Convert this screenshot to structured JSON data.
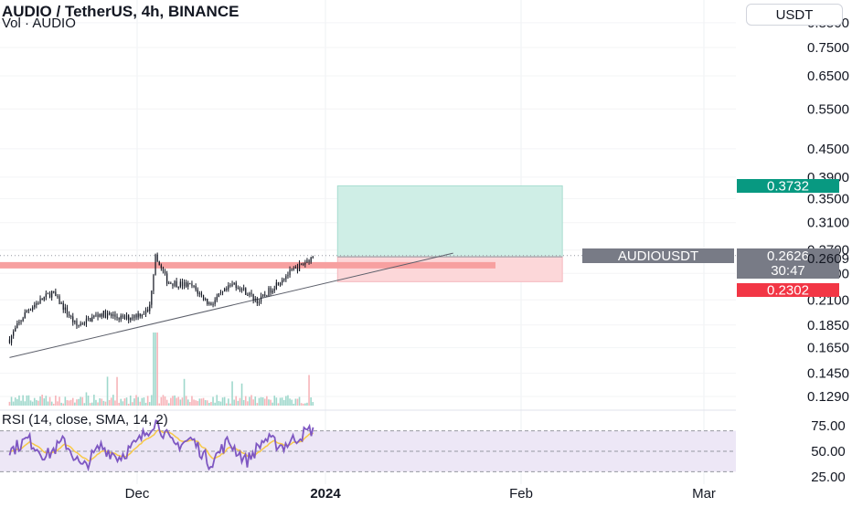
{
  "header": {
    "title": "AUDIO / TetherUS, 4h, BINANCE",
    "subtitle": "Vol · AUDIO",
    "rsi_title": "RSI (14, close, SMA, 14, 2)",
    "currency": "USDT"
  },
  "colors": {
    "up": "#089981",
    "down": "#f23645",
    "profit_zone": "#cfeee6",
    "loss_zone": "#fcd7d9",
    "resistance": "#f7a0a0",
    "rsi_line": "#7e57c2",
    "rsi_ma": "#f7c948",
    "rsi_band": "#ede7f6"
  },
  "chart_data": [
    {
      "type": "candlestick",
      "title": "AUDIO / TetherUS, 4h, BINANCE",
      "y_scale": "log",
      "price_ticks": [
        "0.8500",
        "0.7500",
        "0.6500",
        "0.5500",
        "0.4500",
        "0.3900",
        "0.3500",
        "0.3100",
        "0.2700",
        "0.2400",
        "0.2100",
        "0.1850",
        "0.1650",
        "0.1450",
        "0.1290"
      ],
      "time_labels": [
        "Dec",
        "2024",
        "Feb",
        "Mar"
      ],
      "price_path": [
        {
          "t": "Nov 10",
          "price": 0.172
        },
        {
          "t": "Nov 13",
          "price": 0.2
        },
        {
          "t": "Nov 17",
          "price": 0.218
        },
        {
          "t": "Nov 21",
          "price": 0.184
        },
        {
          "t": "Nov 25",
          "price": 0.196
        },
        {
          "t": "Nov 29",
          "price": 0.191
        },
        {
          "t": "Dec 3",
          "price": 0.199
        },
        {
          "t": "Dec 4",
          "price": 0.26
        },
        {
          "t": "Dec 6",
          "price": 0.23
        },
        {
          "t": "Dec 10",
          "price": 0.225
        },
        {
          "t": "Dec 13",
          "price": 0.205
        },
        {
          "t": "Dec 17",
          "price": 0.228
        },
        {
          "t": "Dec 21",
          "price": 0.208
        },
        {
          "t": "Dec 25",
          "price": 0.235
        },
        {
          "t": "Dec 28",
          "price": 0.25
        },
        {
          "t": "Dec 30",
          "price": 0.262
        }
      ],
      "resistance_level": 0.25,
      "trendline": {
        "from": {
          "t": "Nov 10",
          "price": 0.157
        },
        "to": {
          "t": "Jan 16",
          "price": 0.2609
        }
      },
      "position": {
        "entry": 0.2609,
        "target": 0.3732,
        "stop": 0.2302,
        "from": "Jan 3",
        "to": "Feb 9"
      },
      "price_labels": [
        {
          "text": "0.3732",
          "role": "target"
        },
        {
          "text": "AUDIOUSDT",
          "role": "symbol"
        },
        {
          "text": "0.2626",
          "role": "last"
        },
        {
          "text": "30:47",
          "role": "countdown"
        },
        {
          "text": "0.2609",
          "role": "entry"
        },
        {
          "text": "0.2302",
          "role": "stop"
        }
      ]
    },
    {
      "type": "line",
      "title": "RSI (14, close, SMA, 14, 2)",
      "y_ticks": [
        "75.00",
        "50.00",
        "25.00"
      ],
      "ylim": [
        20,
        80
      ],
      "band": [
        30,
        70
      ],
      "rsi_path": [
        {
          "t": "Nov 10",
          "value": 50
        },
        {
          "t": "Nov 13",
          "value": 62
        },
        {
          "t": "Nov 16",
          "value": 45
        },
        {
          "t": "Nov 19",
          "value": 60
        },
        {
          "t": "Nov 22",
          "value": 33
        },
        {
          "t": "Nov 25",
          "value": 55
        },
        {
          "t": "Nov 28",
          "value": 44
        },
        {
          "t": "Dec 1",
          "value": 58
        },
        {
          "t": "Dec 4",
          "value": 80
        },
        {
          "t": "Dec 7",
          "value": 55
        },
        {
          "t": "Dec 10",
          "value": 62
        },
        {
          "t": "Dec 13",
          "value": 38
        },
        {
          "t": "Dec 16",
          "value": 60
        },
        {
          "t": "Dec 19",
          "value": 40
        },
        {
          "t": "Dec 22",
          "value": 62
        },
        {
          "t": "Dec 25",
          "value": 55
        },
        {
          "t": "Dec 28",
          "value": 66
        },
        {
          "t": "Dec 30",
          "value": 72
        }
      ]
    }
  ]
}
